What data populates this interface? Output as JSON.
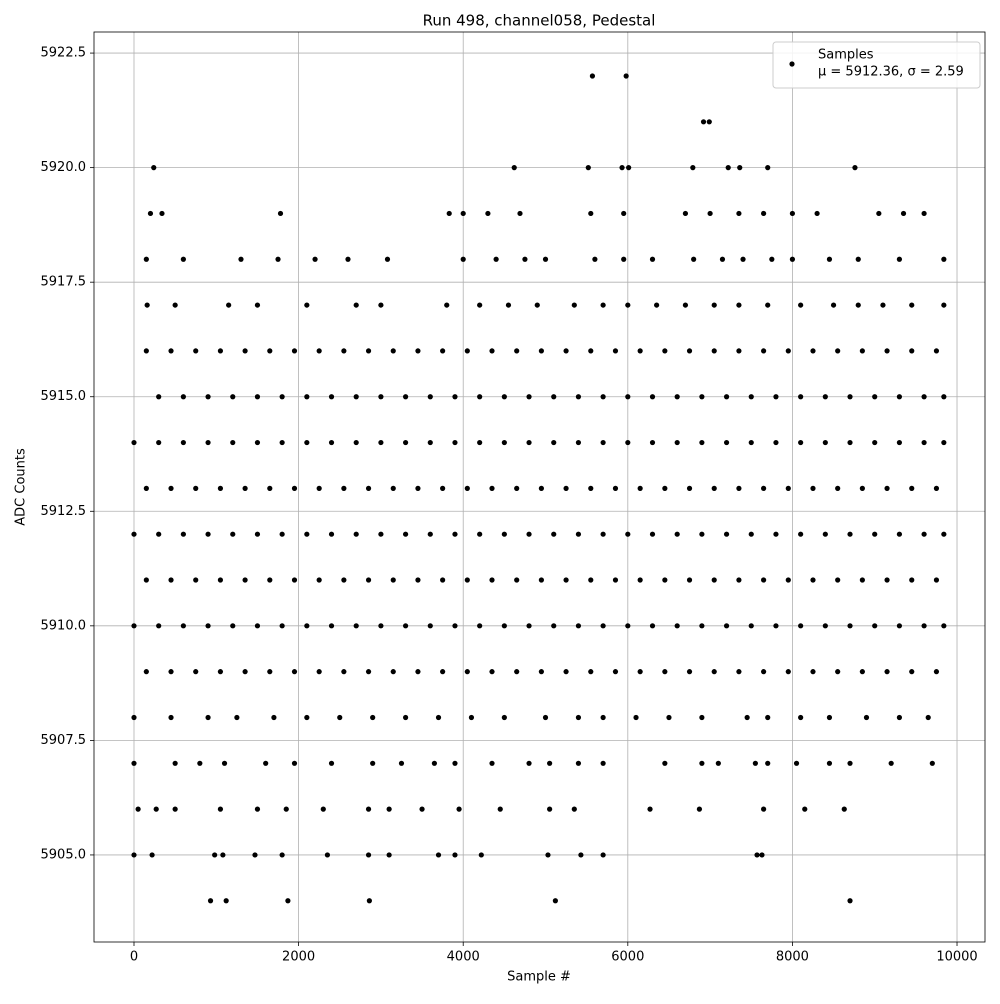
{
  "chart_data": {
    "type": "scatter",
    "title": "Run 498, channel058, Pedestal",
    "x_label": "Sample #",
    "y_label": "ADC Counts",
    "xlim": [
      -486,
      10340
    ],
    "ylim": [
      5903.1,
      5922.96
    ],
    "xticks": [
      0,
      2000,
      4000,
      6000,
      8000,
      10000
    ],
    "yticks": [
      {
        "value": 5905,
        "label": "5905.0"
      },
      {
        "value": 5907.5,
        "label": "5907.5"
      },
      {
        "value": 5910,
        "label": "5910.0"
      },
      {
        "value": 5912.5,
        "label": "5912.5"
      },
      {
        "value": 5915,
        "label": "5915.0"
      },
      {
        "value": 5917.5,
        "label": "5917.5"
      },
      {
        "value": 5920,
        "label": "5920.0"
      },
      {
        "value": 5922.5,
        "label": "5922.5"
      }
    ],
    "grid": true,
    "legend": "upper right",
    "legend_note": "μ = 5912.36, σ = 2.59",
    "series": [
      {
        "name": "Samples",
        "color": "#000000",
        "x": [
          150,
          450,
          750,
          1050,
          1350,
          1650,
          1950,
          2250,
          2550,
          2850,
          3150,
          3450,
          3750,
          4050,
          4350,
          4650,
          4950,
          5250,
          5550,
          5850,
          6150,
          6450,
          6750,
          7050,
          7350,
          7650,
          7950,
          8250,
          8550,
          8850,
          9150,
          9450,
          9750,
          300,
          600,
          900,
          1200,
          1500,
          1800,
          2100,
          2400,
          2700,
          3000,
          3300,
          3600,
          3900,
          4200,
          4500,
          4800,
          5100,
          5400,
          5700,
          6000,
          6300,
          6600,
          6900,
          7200,
          7500,
          7800,
          8100,
          8400,
          8700,
          9000,
          9300,
          9600,
          9840,
          0,
          300,
          600,
          900,
          1200,
          1500,
          1800,
          2100,
          2400,
          2700,
          3000,
          3300,
          3600,
          3900,
          4200,
          4500,
          4800,
          5100,
          5400,
          5700,
          6000,
          6300,
          6600,
          6900,
          7200,
          7500,
          7800,
          8100,
          8400,
          8700,
          9000,
          9300,
          9600,
          9840,
          150,
          450,
          750,
          1050,
          1350,
          1650,
          1950,
          2250,
          2550,
          2850,
          3150,
          3450,
          3750,
          4050,
          4350,
          4650,
          4950,
          5250,
          5550,
          5850,
          6150,
          6450,
          6750,
          7050,
          7350,
          7650,
          7950,
          8250,
          8550,
          8850,
          9150,
          9450,
          9750,
          0,
          300,
          600,
          900,
          1200,
          1500,
          1800,
          2100,
          2400,
          2700,
          3000,
          3300,
          3600,
          3900,
          4200,
          4500,
          4800,
          5100,
          5400,
          5700,
          6000,
          6300,
          6600,
          6900,
          7200,
          7500,
          7800,
          8100,
          8400,
          8700,
          9000,
          9300,
          9600,
          9840,
          150,
          450,
          750,
          1050,
          1350,
          1650,
          1950,
          2250,
          2550,
          2850,
          3150,
          3450,
          3750,
          4050,
          4350,
          4650,
          4950,
          5250,
          5550,
          5850,
          6150,
          6450,
          6750,
          7050,
          7350,
          7650,
          7950,
          8250,
          8550,
          8850,
          9150,
          9450,
          9750,
          0,
          300,
          600,
          900,
          1200,
          1500,
          1800,
          2100,
          2400,
          2700,
          3000,
          3300,
          3600,
          3900,
          4200,
          4500,
          4800,
          5100,
          5400,
          5700,
          6000,
          6300,
          6600,
          6900,
          7200,
          7500,
          7800,
          8100,
          8400,
          8700,
          9000,
          9300,
          9600,
          9840,
          150,
          450,
          750,
          1050,
          1350,
          1650,
          1950,
          2250,
          2550,
          2850,
          3150,
          3450,
          3750,
          4050,
          4350,
          4650,
          4950,
          5250,
          5550,
          5850,
          6150,
          6450,
          6750,
          7050,
          7350,
          7650,
          7950,
          8250,
          8550,
          8850,
          9150,
          9450,
          9750,
          160,
          500,
          1150,
          1500,
          2100,
          2700,
          3000,
          3800,
          4200,
          4550,
          4900,
          5350,
          5700,
          6000,
          6350,
          6700,
          7050,
          7350,
          7700,
          8100,
          8500,
          8800,
          9100,
          9450,
          9840,
          0,
          450,
          900,
          1250,
          1700,
          2100,
          2500,
          2900,
          3300,
          3700,
          4100,
          4500,
          5000,
          5400,
          5700,
          6100,
          6500,
          6900,
          7450,
          7700,
          8100,
          8450,
          8900,
          9300,
          9650,
          150,
          600,
          1300,
          1750,
          2200,
          2600,
          3080,
          4000,
          4400,
          4750,
          5000,
          5600,
          5950,
          6300,
          6800,
          7150,
          7400,
          7750,
          8000,
          8450,
          8800,
          9300,
          9840,
          0,
          500,
          800,
          1100,
          1600,
          1950,
          2400,
          2900,
          3250,
          3650,
          3900,
          4350,
          4800,
          5050,
          5400,
          5700,
          6450,
          6900,
          7100,
          7550,
          7700,
          8050,
          8450,
          8700,
          9200,
          9700,
          200,
          340,
          1780,
          3830,
          4000,
          4300,
          4690,
          5550,
          5950,
          6700,
          7000,
          7350,
          7650,
          8000,
          8300,
          9050,
          9350,
          9600,
          50,
          270,
          500,
          1050,
          1500,
          1850,
          2300,
          2850,
          3100,
          3500,
          3950,
          4450,
          5050,
          5350,
          6270,
          6870,
          7650,
          8150,
          8630,
          0,
          220,
          980,
          1080,
          1470,
          1800,
          2350,
          2850,
          3100,
          3700,
          3900,
          4220,
          5030,
          5430,
          5700,
          7570,
          7630,
          930,
          1120,
          1870,
          2860,
          5120,
          8700,
          240,
          4620,
          5520,
          5930,
          6010,
          6790,
          7220,
          7360,
          7700,
          8760,
          6920,
          6990,
          5570,
          5980
        ],
        "values": [
          5916,
          5916,
          5916,
          5916,
          5916,
          5916,
          5916,
          5916,
          5916,
          5916,
          5916,
          5916,
          5916,
          5916,
          5916,
          5916,
          5916,
          5916,
          5916,
          5916,
          5916,
          5916,
          5916,
          5916,
          5916,
          5916,
          5916,
          5916,
          5916,
          5916,
          5916,
          5916,
          5916,
          5915,
          5915,
          5915,
          5915,
          5915,
          5915,
          5915,
          5915,
          5915,
          5915,
          5915,
          5915,
          5915,
          5915,
          5915,
          5915,
          5915,
          5915,
          5915,
          5915,
          5915,
          5915,
          5915,
          5915,
          5915,
          5915,
          5915,
          5915,
          5915,
          5915,
          5915,
          5915,
          5915,
          5914,
          5914,
          5914,
          5914,
          5914,
          5914,
          5914,
          5914,
          5914,
          5914,
          5914,
          5914,
          5914,
          5914,
          5914,
          5914,
          5914,
          5914,
          5914,
          5914,
          5914,
          5914,
          5914,
          5914,
          5914,
          5914,
          5914,
          5914,
          5914,
          5914,
          5914,
          5914,
          5914,
          5914,
          5913,
          5913,
          5913,
          5913,
          5913,
          5913,
          5913,
          5913,
          5913,
          5913,
          5913,
          5913,
          5913,
          5913,
          5913,
          5913,
          5913,
          5913,
          5913,
          5913,
          5913,
          5913,
          5913,
          5913,
          5913,
          5913,
          5913,
          5913,
          5913,
          5913,
          5913,
          5913,
          5913,
          5912,
          5912,
          5912,
          5912,
          5912,
          5912,
          5912,
          5912,
          5912,
          5912,
          5912,
          5912,
          5912,
          5912,
          5912,
          5912,
          5912,
          5912,
          5912,
          5912,
          5912,
          5912,
          5912,
          5912,
          5912,
          5912,
          5912,
          5912,
          5912,
          5912,
          5912,
          5912,
          5912,
          5912,
          5911,
          5911,
          5911,
          5911,
          5911,
          5911,
          5911,
          5911,
          5911,
          5911,
          5911,
          5911,
          5911,
          5911,
          5911,
          5911,
          5911,
          5911,
          5911,
          5911,
          5911,
          5911,
          5911,
          5911,
          5911,
          5911,
          5911,
          5911,
          5911,
          5911,
          5911,
          5911,
          5911,
          5910,
          5910,
          5910,
          5910,
          5910,
          5910,
          5910,
          5910,
          5910,
          5910,
          5910,
          5910,
          5910,
          5910,
          5910,
          5910,
          5910,
          5910,
          5910,
          5910,
          5910,
          5910,
          5910,
          5910,
          5910,
          5910,
          5910,
          5910,
          5910,
          5910,
          5910,
          5910,
          5910,
          5910,
          5909,
          5909,
          5909,
          5909,
          5909,
          5909,
          5909,
          5909,
          5909,
          5909,
          5909,
          5909,
          5909,
          5909,
          5909,
          5909,
          5909,
          5909,
          5909,
          5909,
          5909,
          5909,
          5909,
          5909,
          5909,
          5909,
          5909,
          5909,
          5909,
          5909,
          5909,
          5909,
          5909,
          5917,
          5917,
          5917,
          5917,
          5917,
          5917,
          5917,
          5917,
          5917,
          5917,
          5917,
          5917,
          5917,
          5917,
          5917,
          5917,
          5917,
          5917,
          5917,
          5917,
          5917,
          5917,
          5917,
          5917,
          5917,
          5908,
          5908,
          5908,
          5908,
          5908,
          5908,
          5908,
          5908,
          5908,
          5908,
          5908,
          5908,
          5908,
          5908,
          5908,
          5908,
          5908,
          5908,
          5908,
          5908,
          5908,
          5908,
          5908,
          5908,
          5908,
          5918,
          5918,
          5918,
          5918,
          5918,
          5918,
          5918,
          5918,
          5918,
          5918,
          5918,
          5918,
          5918,
          5918,
          5918,
          5918,
          5918,
          5918,
          5918,
          5918,
          5918,
          5918,
          5918,
          5907,
          5907,
          5907,
          5907,
          5907,
          5907,
          5907,
          5907,
          5907,
          5907,
          5907,
          5907,
          5907,
          5907,
          5907,
          5907,
          5907,
          5907,
          5907,
          5907,
          5907,
          5907,
          5907,
          5907,
          5907,
          5907,
          5919,
          5919,
          5919,
          5919,
          5919,
          5919,
          5919,
          5919,
          5919,
          5919,
          5919,
          5919,
          5919,
          5919,
          5919,
          5919,
          5919,
          5919,
          5906,
          5906,
          5906,
          5906,
          5906,
          5906,
          5906,
          5906,
          5906,
          5906,
          5906,
          5906,
          5906,
          5906,
          5906,
          5906,
          5906,
          5906,
          5906,
          5905,
          5905,
          5905,
          5905,
          5905,
          5905,
          5905,
          5905,
          5905,
          5905,
          5905,
          5905,
          5905,
          5905,
          5905,
          5905,
          5905,
          5904,
          5904,
          5904,
          5904,
          5904,
          5904,
          5920,
          5920,
          5920,
          5920,
          5920,
          5920,
          5920,
          5920,
          5920,
          5920,
          5921,
          5921,
          5922,
          5922
        ]
      }
    ]
  }
}
